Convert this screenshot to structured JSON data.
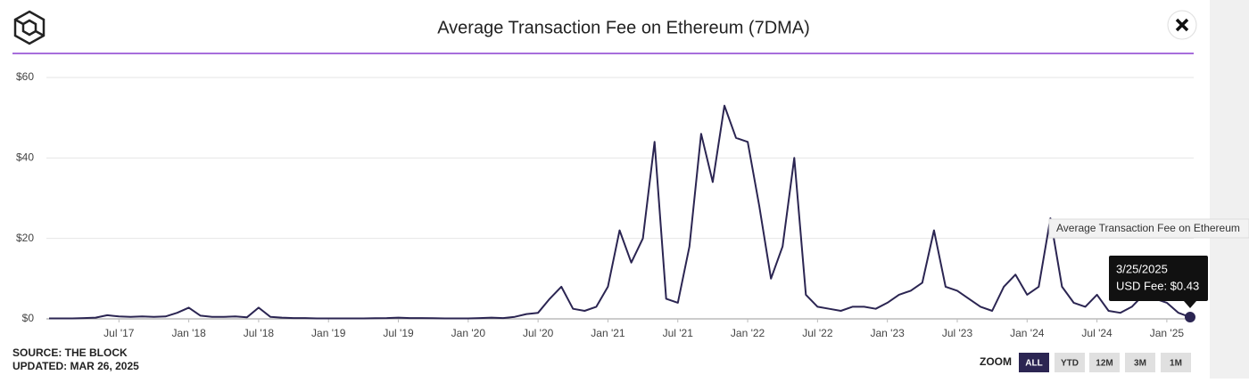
{
  "chart_data": {
    "type": "line",
    "title": "Average Transaction Fee on Ethereum (7DMA)",
    "x": [
      "2017-01",
      "2017-02",
      "2017-03",
      "2017-04",
      "2017-05",
      "2017-06",
      "2017-07",
      "2017-08",
      "2017-09",
      "2017-10",
      "2017-11",
      "2017-12",
      "2018-01",
      "2018-02",
      "2018-03",
      "2018-04",
      "2018-05",
      "2018-06",
      "2018-07",
      "2018-08",
      "2018-09",
      "2018-10",
      "2018-11",
      "2018-12",
      "2019-01",
      "2019-02",
      "2019-03",
      "2019-04",
      "2019-05",
      "2019-06",
      "2019-07",
      "2019-08",
      "2019-09",
      "2019-10",
      "2019-11",
      "2019-12",
      "2020-01",
      "2020-02",
      "2020-03",
      "2020-04",
      "2020-05",
      "2020-06",
      "2020-07",
      "2020-08",
      "2020-09",
      "2020-10",
      "2020-11",
      "2020-12",
      "2021-01",
      "2021-02",
      "2021-03",
      "2021-04",
      "2021-05",
      "2021-06",
      "2021-07",
      "2021-08",
      "2021-09",
      "2021-10",
      "2021-11",
      "2021-12",
      "2022-01",
      "2022-02",
      "2022-03",
      "2022-04",
      "2022-05",
      "2022-06",
      "2022-07",
      "2022-08",
      "2022-09",
      "2022-10",
      "2022-11",
      "2022-12",
      "2023-01",
      "2023-02",
      "2023-03",
      "2023-04",
      "2023-05",
      "2023-06",
      "2023-07",
      "2023-08",
      "2023-09",
      "2023-10",
      "2023-11",
      "2023-12",
      "2024-01",
      "2024-02",
      "2024-03",
      "2024-04",
      "2024-05",
      "2024-06",
      "2024-07",
      "2024-08",
      "2024-09",
      "2024-10",
      "2024-11",
      "2024-12",
      "2025-01",
      "2025-02",
      "2025-03"
    ],
    "series": [
      {
        "name": "Average Transaction Fee on Ethereum",
        "color": "#2b2552",
        "values": [
          0.1,
          0.1,
          0.1,
          0.2,
          0.3,
          0.9,
          0.6,
          0.5,
          0.6,
          0.5,
          0.6,
          1.5,
          2.8,
          0.8,
          0.5,
          0.5,
          0.6,
          0.4,
          2.8,
          0.5,
          0.3,
          0.2,
          0.2,
          0.1,
          0.1,
          0.1,
          0.1,
          0.1,
          0.15,
          0.2,
          0.3,
          0.2,
          0.2,
          0.15,
          0.1,
          0.1,
          0.1,
          0.2,
          0.3,
          0.2,
          0.5,
          1.2,
          1.5,
          5,
          8,
          2.5,
          2,
          3,
          8,
          22,
          14,
          20,
          44,
          5,
          4,
          18,
          46,
          34,
          53,
          45,
          44,
          28,
          10,
          18,
          40,
          6,
          3,
          2.5,
          2,
          3,
          3,
          2.5,
          4,
          6,
          7,
          9,
          22,
          8,
          7,
          5,
          3,
          2,
          8,
          11,
          6,
          8,
          25,
          8,
          4,
          3,
          6,
          2,
          1.5,
          3,
          6,
          5,
          4,
          1.5,
          0.43
        ]
      }
    ],
    "xlim": [
      "2017-01",
      "2025-03"
    ],
    "xticks": [
      {
        "value": "2017-07",
        "label": "Jul '17"
      },
      {
        "value": "2018-01",
        "label": "Jan '18"
      },
      {
        "value": "2018-07",
        "label": "Jul '18"
      },
      {
        "value": "2019-01",
        "label": "Jan '19"
      },
      {
        "value": "2019-07",
        "label": "Jul '19"
      },
      {
        "value": "2020-01",
        "label": "Jan '20"
      },
      {
        "value": "2020-07",
        "label": "Jul '20"
      },
      {
        "value": "2021-01",
        "label": "Jan '21"
      },
      {
        "value": "2021-07",
        "label": "Jul '21"
      },
      {
        "value": "2022-01",
        "label": "Jan '22"
      },
      {
        "value": "2022-07",
        "label": "Jul '22"
      },
      {
        "value": "2023-01",
        "label": "Jan '23"
      },
      {
        "value": "2023-07",
        "label": "Jul '23"
      },
      {
        "value": "2024-01",
        "label": "Jan '24"
      },
      {
        "value": "2024-07",
        "label": "Jul '24"
      },
      {
        "value": "2025-01",
        "label": "Jan '25"
      }
    ],
    "ylim": [
      0,
      60
    ],
    "yticks": [
      {
        "value": 0,
        "label": "$0"
      },
      {
        "value": 20,
        "label": "$20"
      },
      {
        "value": 40,
        "label": "$40"
      },
      {
        "value": 60,
        "label": "$60"
      }
    ],
    "grid": true,
    "tooltip": {
      "date": "3/25/2025",
      "text": "USD Fee: $0.43"
    },
    "source": "SOURCE: THE BLOCK",
    "updated": "UPDATED: MAR 26, 2025",
    "zoom": {
      "label": "ZOOM",
      "buttons": [
        "ALL",
        "YTD",
        "12M",
        "3M",
        "1M"
      ]
    }
  }
}
